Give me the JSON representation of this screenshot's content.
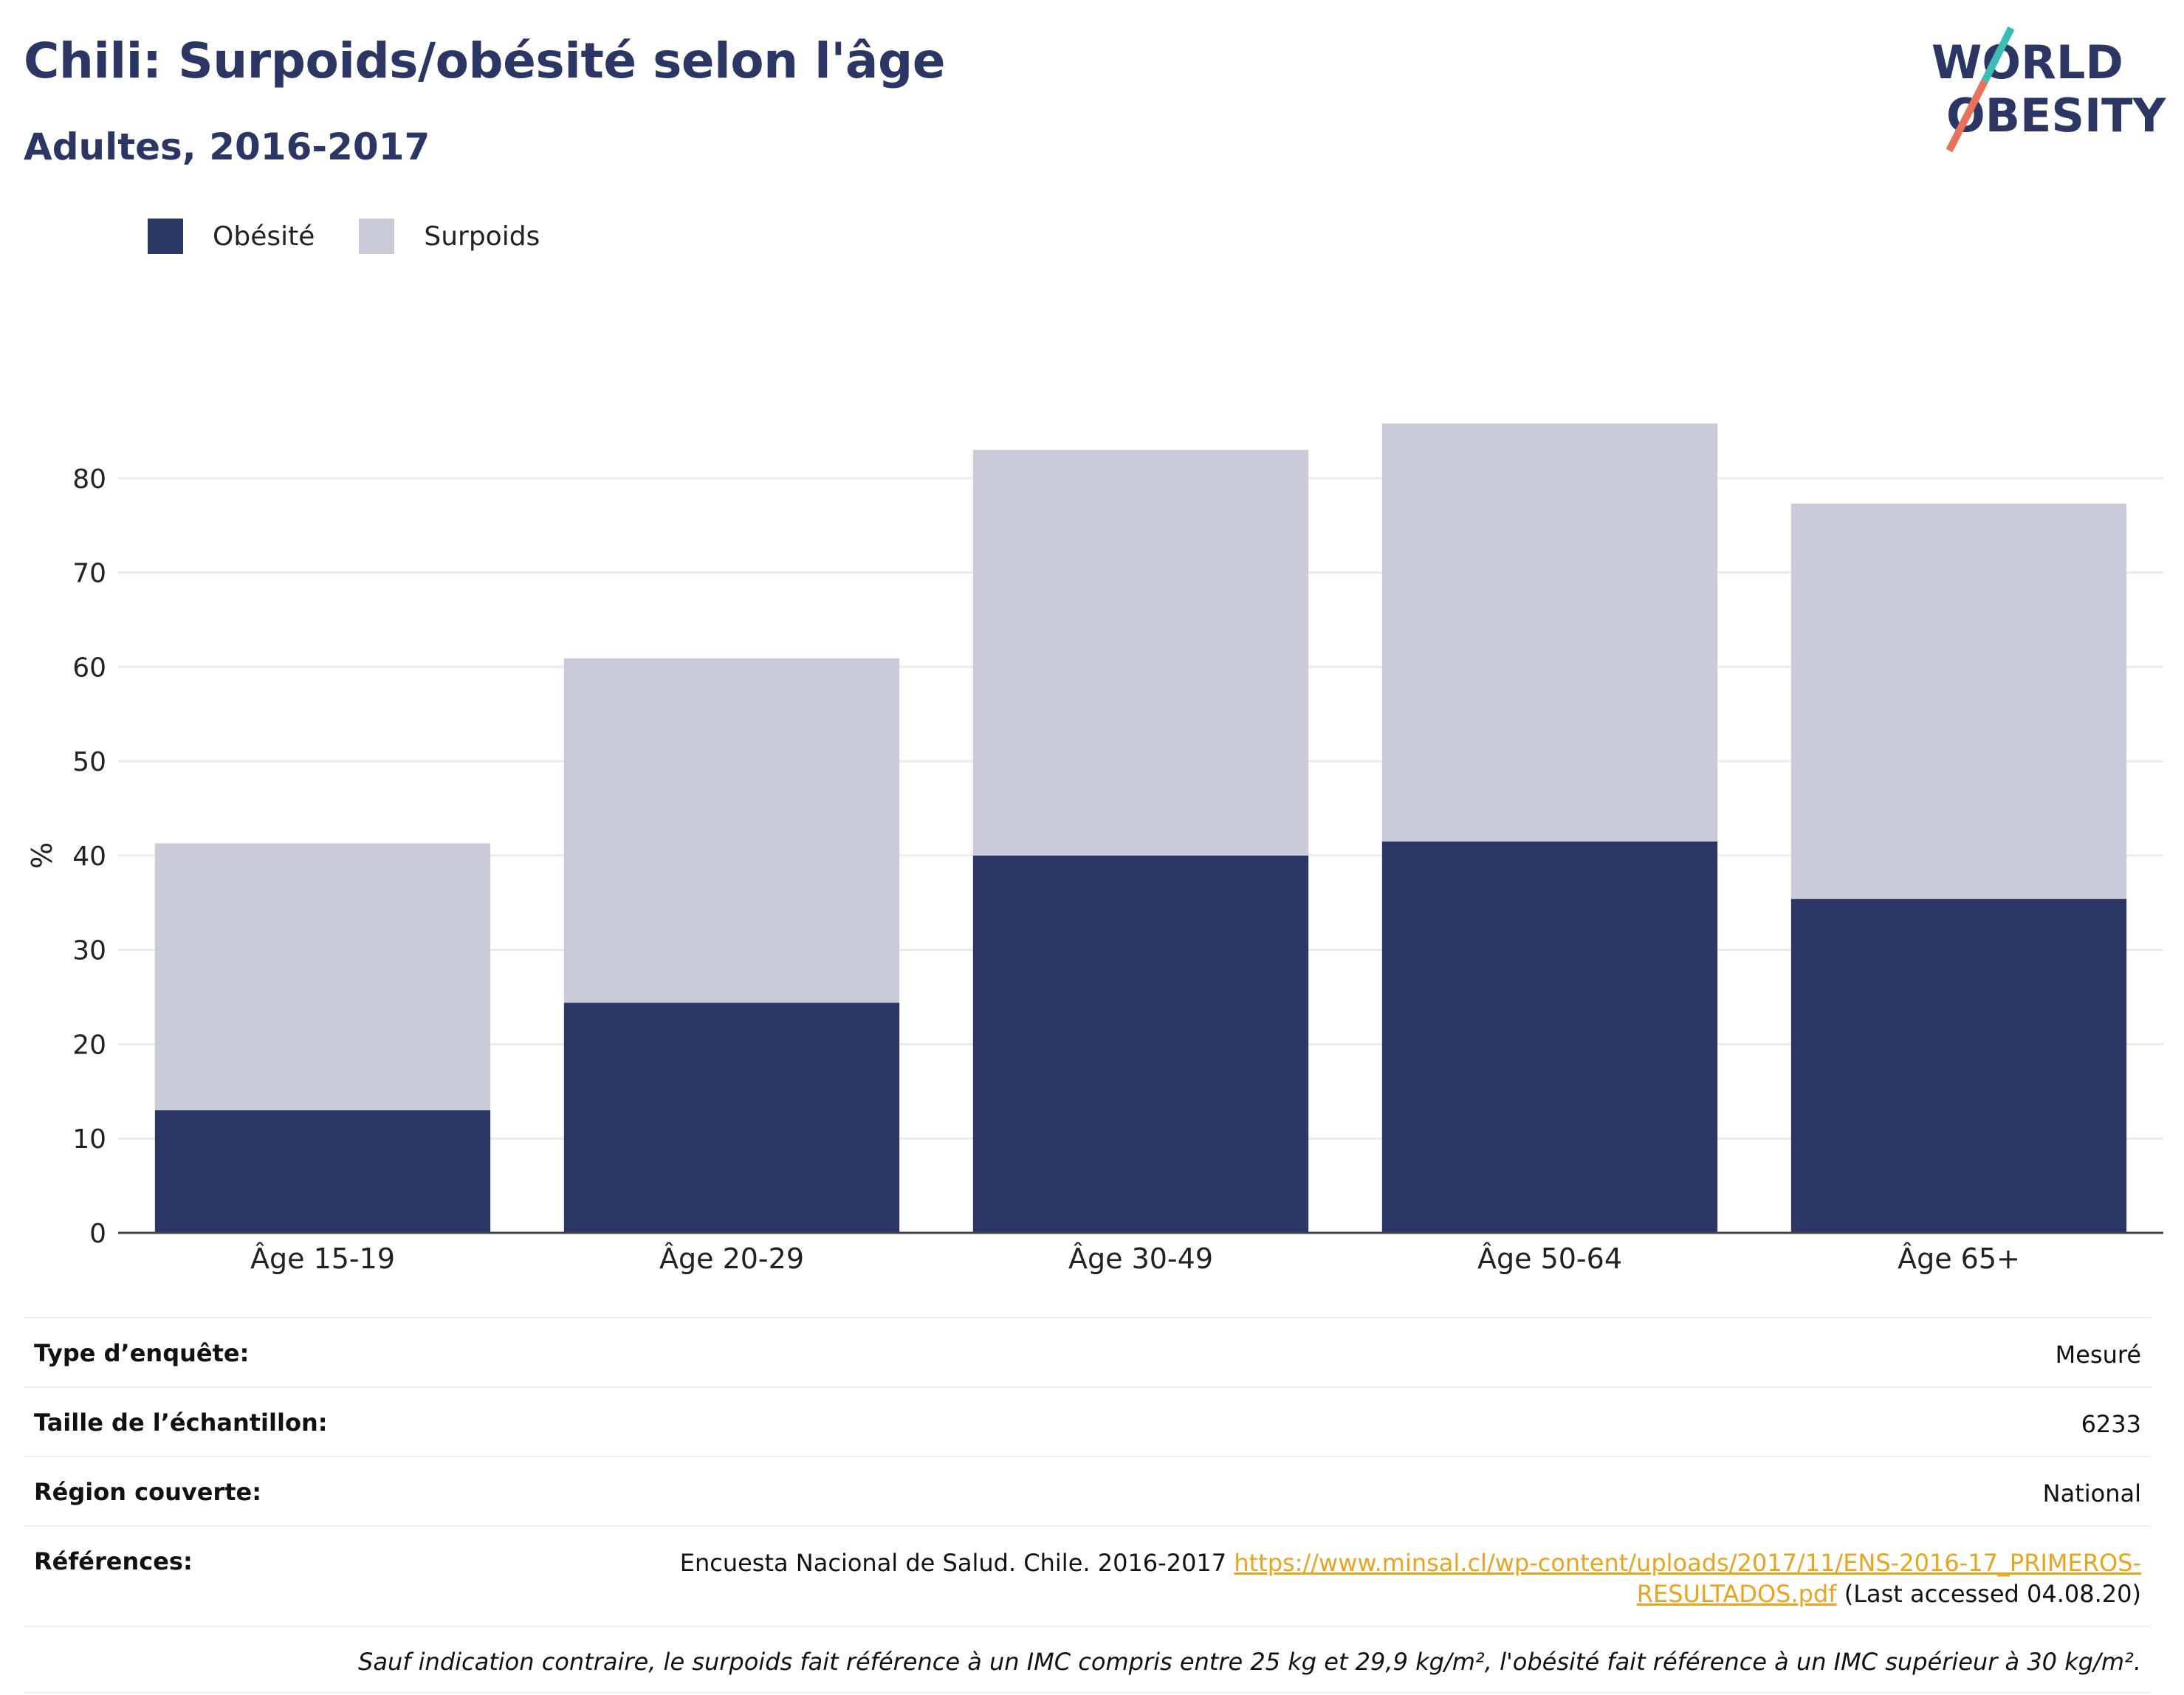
{
  "header": {
    "title": "Chili: Surpoids/obésité selon l'âge",
    "subtitle": "Adultes, 2016-2017"
  },
  "logo": {
    "line1": "WORLD",
    "line2": "OBESITY",
    "slash_color_top": "#3bbdb6",
    "slash_color_bottom": "#e8735a"
  },
  "colors": {
    "obesite": "#2b3664",
    "surpoids": "#c9ccd8",
    "text_dark": "#2b3664",
    "link": "#e8a41f"
  },
  "legend": [
    {
      "label": "Obésité",
      "color": "#2b3664"
    },
    {
      "label": "Surpoids",
      "color": "#c9ccd8"
    }
  ],
  "chart_data": {
    "type": "bar",
    "stacked": true,
    "categories": [
      "Âge 15-19",
      "Âge 20-29",
      "Âge 30-49",
      "Âge 50-64",
      "Âge 65+"
    ],
    "series": [
      {
        "name": "Obésité",
        "values": [
          13.0,
          24.4,
          40.0,
          41.5,
          35.4
        ]
      },
      {
        "name": "Surpoids",
        "values": [
          28.3,
          36.5,
          43.0,
          44.3,
          41.9
        ]
      }
    ],
    "ylabel": "%",
    "ylim": [
      0,
      90
    ],
    "yticks": [
      0,
      10,
      20,
      30,
      40,
      50,
      60,
      70,
      80
    ],
    "grid": true,
    "legend_position": "top-left"
  },
  "info": {
    "survey_type_label": "Type d’enquête:",
    "survey_type_value": "Mesuré",
    "sample_label": "Taille de l’échantillon:",
    "sample_value": "6233",
    "region_label": "Région couverte:",
    "region_value": "National",
    "refs_label": "Références:",
    "refs_text": "Encuesta Nacional de Salud. Chile. 2016-2017 ",
    "refs_link": "https://www.minsal.cl/wp-content/uploads/2017/11/ENS-2016-17_PRIMEROS-RESULTADOS.pdf",
    "refs_suffix": " (Last accessed 04.08.20)",
    "note": "Sauf indication contraire, le surpoids fait référence à un IMC compris entre 25 kg et 29,9 kg/m², l'obésité fait référence à un IMC supérieur à 30 kg/m²."
  }
}
